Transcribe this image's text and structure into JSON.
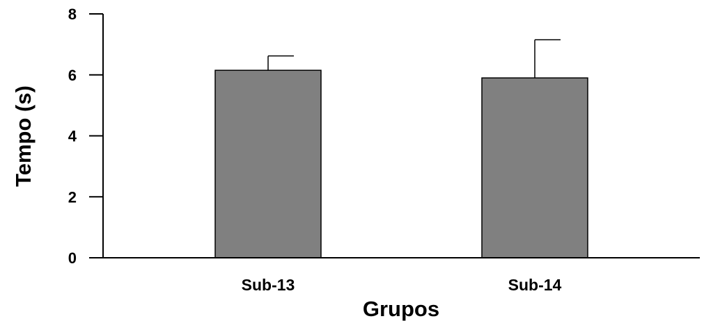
{
  "chart_data": {
    "type": "bar",
    "title": "",
    "xlabel": "Grupos",
    "ylabel": "Tempo (s)",
    "categories": [
      "Sub-13",
      "Sub-14"
    ],
    "values": [
      6.15,
      5.9
    ],
    "errors": [
      0.47,
      1.25
    ],
    "ylim": [
      0,
      8
    ],
    "yticks": [
      0,
      2,
      4,
      6,
      8
    ],
    "grid": false,
    "legend": "none",
    "colors": {
      "bar": "#808080",
      "bar_stroke": "#000000",
      "axis": "#000000"
    }
  }
}
